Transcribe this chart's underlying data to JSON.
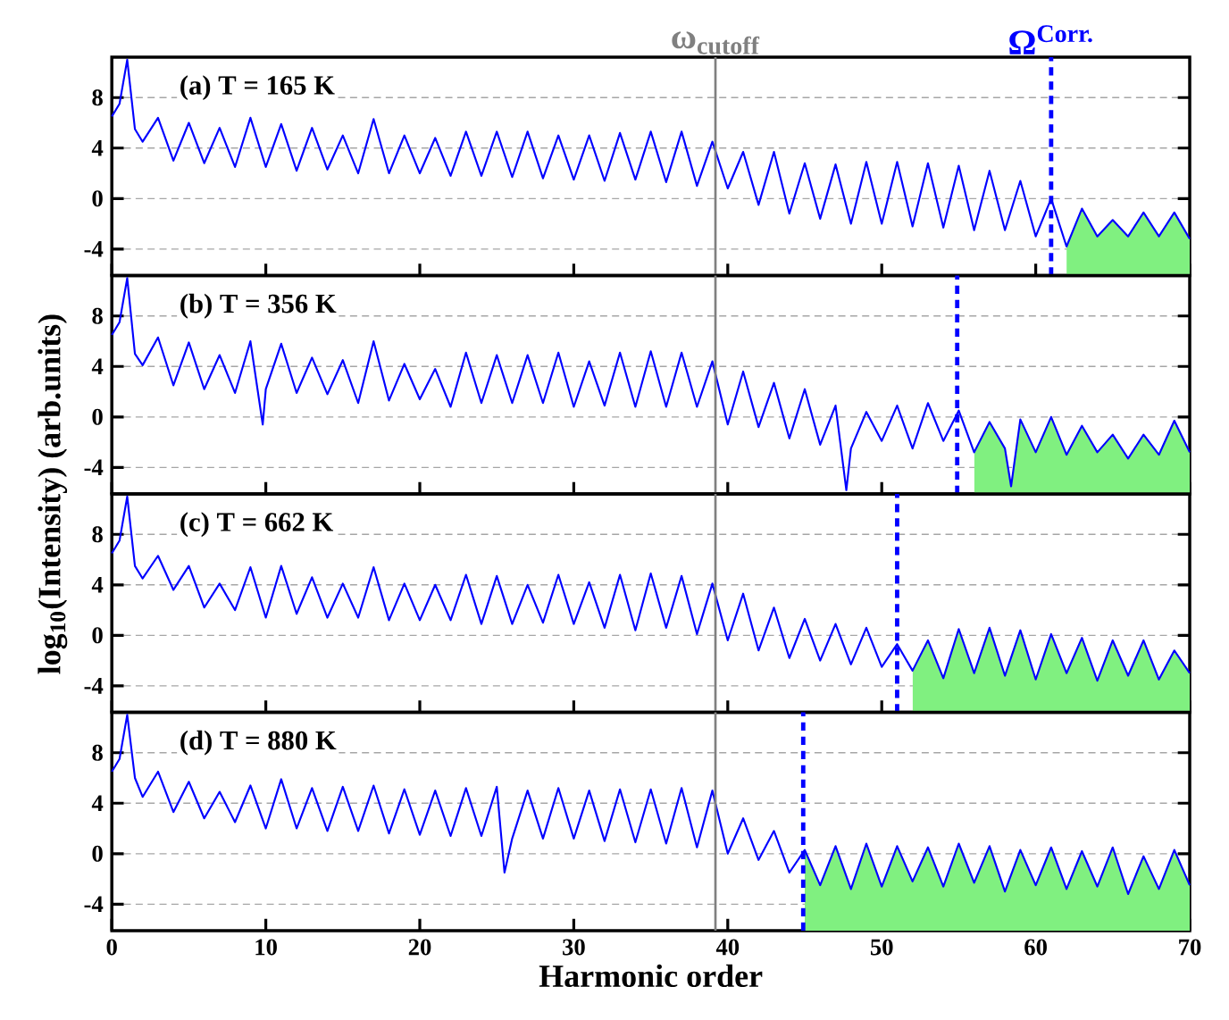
{
  "chart_data": [
    {
      "type": "line",
      "xlim": [
        0,
        70
      ],
      "ylim": [
        -6.1,
        11.2
      ],
      "xticks": [
        0,
        10,
        20,
        30,
        40,
        50,
        60,
        70
      ],
      "yticks": [
        -4,
        0,
        4,
        8
      ],
      "grid": "y",
      "tick_labels": "y",
      "annotations": [
        "(a)  T = 165 K"
      ],
      "ref_lines": [
        {
          "axis": "x",
          "value": 39.2,
          "label": "ω$_{cutoff}$",
          "color": "#808080",
          "line_style": "solid"
        },
        {
          "axis": "x",
          "value": 61.0,
          "label": "Ω$^{Corr.}$",
          "color": "#0000ff",
          "line_style": "dashed"
        }
      ],
      "series": [
        {
          "type": "line",
          "color": "#0000ff",
          "x": [
            0,
            0.5,
            1,
            1.5,
            2,
            3,
            4,
            5,
            6,
            7,
            8,
            9,
            10,
            11,
            12,
            13,
            14,
            15,
            16,
            17,
            18,
            19,
            20,
            21,
            22,
            23,
            24,
            25,
            26,
            27,
            28,
            29,
            30,
            31,
            32,
            33,
            34,
            35,
            36,
            37,
            38,
            39,
            40,
            41,
            42,
            43,
            44,
            45,
            46,
            47,
            48,
            49,
            50,
            51,
            52,
            53,
            54,
            55,
            56,
            57,
            58,
            59,
            60,
            61,
            62,
            63,
            64,
            65,
            66,
            67,
            68,
            69,
            70
          ],
          "values": [
            6.5,
            7.5,
            11.0,
            5.5,
            4.5,
            6.4,
            3.0,
            6.0,
            2.8,
            5.6,
            2.5,
            6.4,
            2.5,
            5.9,
            2.2,
            5.6,
            2.3,
            5.0,
            2.0,
            6.3,
            2.0,
            5.0,
            2.0,
            4.8,
            1.8,
            5.3,
            1.8,
            5.3,
            1.7,
            5.3,
            1.6,
            5.0,
            1.5,
            5.0,
            1.4,
            5.2,
            1.5,
            5.3,
            1.3,
            5.3,
            1.0,
            4.5,
            0.8,
            3.7,
            -0.5,
            3.7,
            -1.2,
            2.8,
            -1.6,
            2.7,
            -2.0,
            2.9,
            -2.0,
            2.9,
            -2.2,
            2.8,
            -2.3,
            2.6,
            -2.5,
            2.2,
            -2.5,
            1.4,
            -3.0,
            0.0,
            -3.8,
            -0.8,
            -3.0,
            -1.7,
            -3.0,
            -1.1,
            -3.0,
            -1.1,
            -3.2
          ]
        }
      ],
      "bands": [
        {
          "axis": "x",
          "from": 62,
          "to": 70,
          "color": "#80f080"
        }
      ]
    },
    {
      "type": "line",
      "xlim": [
        0,
        70
      ],
      "ylim": [
        -6.1,
        11.2
      ],
      "xticks": [
        0,
        10,
        20,
        30,
        40,
        50,
        60,
        70
      ],
      "yticks": [
        -4,
        0,
        4,
        8
      ],
      "grid": "y",
      "tick_labels": "y",
      "ylabel": "log$_{10}$(Intensity) (arb.units)",
      "annotations": [
        "(b)  T = 356 K"
      ],
      "ref_lines": [
        {
          "axis": "x",
          "value": 39.2,
          "color": "#808080",
          "line_style": "solid"
        },
        {
          "axis": "x",
          "value": 54.9,
          "color": "#0000ff",
          "line_style": "dashed"
        }
      ],
      "series": [
        {
          "type": "line",
          "color": "#0000ff",
          "x": [
            0,
            0.5,
            1,
            1.5,
            2,
            3,
            4,
            5,
            6,
            7,
            8,
            9,
            9.8,
            10,
            11,
            12,
            13,
            14,
            15,
            16,
            17,
            18,
            19,
            20,
            21,
            22,
            23,
            24,
            25,
            26,
            27,
            28,
            29,
            30,
            31,
            32,
            33,
            34,
            35,
            36,
            37,
            38,
            39,
            40,
            41,
            42,
            43,
            44,
            45,
            46,
            47,
            47.7,
            48,
            49,
            50,
            51,
            52,
            53,
            54,
            55,
            56,
            57,
            58,
            58.4,
            59,
            60,
            61,
            62,
            63,
            64,
            65,
            66,
            67,
            68,
            69,
            70
          ],
          "values": [
            6.5,
            7.5,
            11.0,
            5.0,
            4.1,
            6.3,
            2.5,
            5.9,
            2.2,
            4.9,
            1.9,
            6.0,
            -0.6,
            2.2,
            5.8,
            1.9,
            4.7,
            1.8,
            4.5,
            1.1,
            6.0,
            1.3,
            4.2,
            1.4,
            3.8,
            0.8,
            5.1,
            1.1,
            4.9,
            1.1,
            4.9,
            1.1,
            5.1,
            0.8,
            4.4,
            0.9,
            5.1,
            0.8,
            5.2,
            0.8,
            5.1,
            0.8,
            4.4,
            -0.6,
            3.6,
            -0.8,
            2.7,
            -1.7,
            2.2,
            -2.2,
            0.9,
            -5.8,
            -2.5,
            0.4,
            -1.9,
            0.9,
            -2.5,
            1.1,
            -1.9,
            0.5,
            -2.8,
            -0.4,
            -2.5,
            -5.5,
            -0.2,
            -2.8,
            0.0,
            -3.0,
            -0.7,
            -2.8,
            -1.4,
            -3.3,
            -1.4,
            -3.0,
            -0.3,
            -2.8
          ]
        }
      ],
      "bands": [
        {
          "axis": "x",
          "from": 56,
          "to": 70,
          "color": "#80f080"
        }
      ]
    },
    {
      "type": "line",
      "xlim": [
        0,
        70
      ],
      "ylim": [
        -6.1,
        11.2
      ],
      "xticks": [
        0,
        10,
        20,
        30,
        40,
        50,
        60,
        70
      ],
      "yticks": [
        -4,
        0,
        4,
        8
      ],
      "grid": "y",
      "tick_labels": "y",
      "annotations": [
        "(c)  T = 662 K"
      ],
      "ref_lines": [
        {
          "axis": "x",
          "value": 39.2,
          "color": "#808080",
          "line_style": "solid"
        },
        {
          "axis": "x",
          "value": 51.0,
          "color": "#0000ff",
          "line_style": "dashed"
        }
      ],
      "series": [
        {
          "type": "line",
          "color": "#0000ff",
          "x": [
            0,
            0.5,
            1,
            1.5,
            2,
            3,
            4,
            5,
            6,
            7,
            8,
            9,
            10,
            11,
            12,
            13,
            14,
            15,
            16,
            17,
            18,
            19,
            20,
            21,
            22,
            23,
            24,
            25,
            26,
            27,
            28,
            29,
            30,
            31,
            32,
            33,
            34,
            35,
            36,
            37,
            38,
            39,
            40,
            41,
            42,
            43,
            44,
            45,
            46,
            47,
            48,
            49,
            50,
            51,
            52,
            53,
            54,
            55,
            56,
            57,
            58,
            59,
            60,
            61,
            62,
            63,
            64,
            65,
            66,
            67,
            68,
            69,
            70
          ],
          "values": [
            6.5,
            7.5,
            11.0,
            5.5,
            4.5,
            6.3,
            3.6,
            5.5,
            2.2,
            4.1,
            2.0,
            5.4,
            1.4,
            5.5,
            1.7,
            4.6,
            1.4,
            4.1,
            1.4,
            5.4,
            1.2,
            4.1,
            1.2,
            4.0,
            1.2,
            4.8,
            0.9,
            4.7,
            0.9,
            4.0,
            1.0,
            4.8,
            0.9,
            4.2,
            0.6,
            4.8,
            0.4,
            4.9,
            0.6,
            4.7,
            0.1,
            4.1,
            -0.4,
            3.3,
            -1.2,
            2.2,
            -1.8,
            1.3,
            -2.0,
            0.9,
            -2.3,
            0.6,
            -2.5,
            -0.7,
            -2.8,
            -0.4,
            -3.4,
            0.5,
            -3.0,
            0.6,
            -3.2,
            0.4,
            -3.5,
            0.1,
            -3.0,
            -0.2,
            -3.6,
            -0.4,
            -3.2,
            -0.4,
            -3.5,
            -1.2,
            -3.0
          ]
        }
      ],
      "bands": [
        {
          "axis": "x",
          "from": 52,
          "to": 70,
          "color": "#80f080"
        }
      ]
    },
    {
      "type": "line",
      "xlim": [
        0,
        70
      ],
      "ylim": [
        -6.1,
        11.2
      ],
      "xticks": [
        0,
        10,
        20,
        30,
        40,
        50,
        60,
        70
      ],
      "yticks": [
        -4,
        0,
        4,
        8
      ],
      "grid": "y",
      "xlabel": "Harmonic order",
      "annotations": [
        "(d)  T = 880 K"
      ],
      "ref_lines": [
        {
          "axis": "x",
          "value": 39.2,
          "color": "#808080",
          "line_style": "solid"
        },
        {
          "axis": "x",
          "value": 44.9,
          "color": "#0000ff",
          "line_style": "dashed"
        }
      ],
      "series": [
        {
          "type": "line",
          "color": "#0000ff",
          "x": [
            0,
            0.5,
            1,
            1.5,
            2,
            3,
            4,
            5,
            6,
            7,
            8,
            9,
            10,
            11,
            12,
            13,
            14,
            15,
            16,
            17,
            18,
            19,
            20,
            21,
            22,
            23,
            24,
            25,
            25.5,
            26,
            27,
            28,
            29,
            30,
            31,
            32,
            33,
            34,
            35,
            36,
            37,
            38,
            39,
            40,
            41,
            42,
            43,
            44,
            45,
            46,
            47,
            48,
            49,
            50,
            51,
            52,
            53,
            54,
            55,
            56,
            57,
            58,
            59,
            60,
            61,
            62,
            63,
            64,
            65,
            66,
            67,
            68,
            69,
            70
          ],
          "values": [
            6.5,
            7.5,
            11.0,
            6.0,
            4.5,
            6.5,
            3.3,
            5.7,
            2.8,
            4.9,
            2.5,
            5.4,
            2.0,
            5.9,
            2.0,
            5.2,
            1.8,
            5.3,
            1.8,
            5.4,
            1.6,
            5.1,
            1.5,
            5.0,
            1.4,
            5.2,
            1.4,
            5.3,
            -1.5,
            1.2,
            5.0,
            1.2,
            5.2,
            1.2,
            5.0,
            1.0,
            5.1,
            0.9,
            5.1,
            0.8,
            5.2,
            0.5,
            5.0,
            0.0,
            2.8,
            -0.5,
            1.8,
            -1.5,
            0.3,
            -2.5,
            0.6,
            -2.8,
            0.8,
            -2.6,
            0.6,
            -2.2,
            0.5,
            -2.6,
            0.8,
            -2.3,
            0.6,
            -3.0,
            0.3,
            -2.5,
            0.5,
            -2.8,
            0.2,
            -2.6,
            0.5,
            -3.2,
            -0.2,
            -2.8,
            0.3,
            -2.5
          ]
        }
      ],
      "bands": [
        {
          "axis": "x",
          "from": 45,
          "to": 70,
          "color": "#80f080"
        }
      ]
    }
  ]
}
